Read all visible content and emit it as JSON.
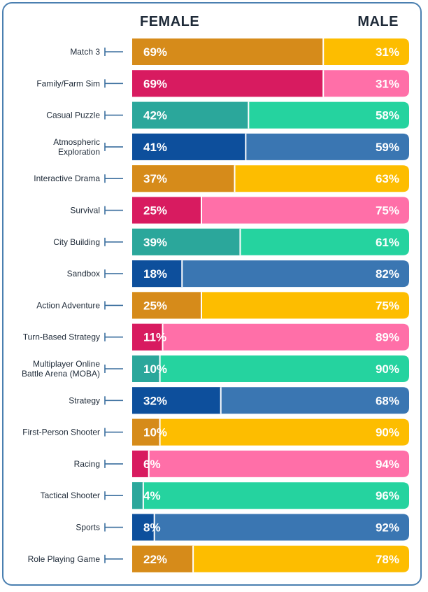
{
  "chart_data": {
    "type": "bar",
    "stacked": true,
    "orientation": "horizontal",
    "headers": {
      "female": "FEMALE",
      "male": "MALE"
    },
    "categories": [
      {
        "label": [
          "Match 3"
        ],
        "female": 69,
        "male": 31,
        "female_text": "69%",
        "male_text": "31%",
        "palette": "orange"
      },
      {
        "label": [
          "Family/Farm Sim"
        ],
        "female": 69,
        "male": 31,
        "female_text": "69%",
        "male_text": "31%",
        "palette": "pink"
      },
      {
        "label": [
          "Casual Puzzle"
        ],
        "female": 42,
        "male": 58,
        "female_text": "42%",
        "male_text": "58%",
        "palette": "teal"
      },
      {
        "label": [
          "Atmospheric",
          "Exploration"
        ],
        "female": 41,
        "male": 59,
        "female_text": "41%",
        "male_text": "59%",
        "palette": "blue"
      },
      {
        "label": [
          "Interactive Drama"
        ],
        "female": 37,
        "male": 63,
        "female_text": "37%",
        "male_text": "63%",
        "palette": "orange"
      },
      {
        "label": [
          "Survival"
        ],
        "female": 25,
        "male": 75,
        "female_text": "25%",
        "male_text": "75%",
        "palette": "pink"
      },
      {
        "label": [
          "City Building"
        ],
        "female": 39,
        "male": 61,
        "female_text": "39%",
        "male_text": "61%",
        "palette": "teal"
      },
      {
        "label": [
          "Sandbox"
        ],
        "female": 18,
        "male": 82,
        "female_text": "18%",
        "male_text": "82%",
        "palette": "blue"
      },
      {
        "label": [
          "Action Adventure"
        ],
        "female": 25,
        "male": 75,
        "female_text": "25%",
        "male_text": "75%",
        "palette": "orange"
      },
      {
        "label": [
          "Turn-Based Strategy"
        ],
        "female": 11,
        "male": 89,
        "female_text": "11%",
        "male_text": "89%",
        "palette": "pink"
      },
      {
        "label": [
          "Multiplayer Online",
          "Battle Arena (MOBA)"
        ],
        "female": 10,
        "male": 90,
        "female_text": "10%",
        "male_text": "90%",
        "palette": "teal"
      },
      {
        "label": [
          "Strategy"
        ],
        "female": 32,
        "male": 68,
        "female_text": "32%",
        "male_text": "68%",
        "palette": "blue"
      },
      {
        "label": [
          "First-Person Shooter"
        ],
        "female": 10,
        "male": 90,
        "female_text": "10%",
        "male_text": "90%",
        "palette": "orange"
      },
      {
        "label": [
          "Racing"
        ],
        "female": 6,
        "male": 94,
        "female_text": "6%",
        "male_text": "94%",
        "palette": "pink"
      },
      {
        "label": [
          "Tactical Shooter"
        ],
        "female": 4,
        "male": 96,
        "female_text": "4%",
        "male_text": "96%",
        "palette": "teal"
      },
      {
        "label": [
          "Sports"
        ],
        "female": 8,
        "male": 92,
        "female_text": "8%",
        "male_text": "92%",
        "palette": "blue"
      },
      {
        "label": [
          "Role Playing Game"
        ],
        "female": 22,
        "male": 78,
        "female_text": "22%",
        "male_text": "78%",
        "palette": "orange"
      }
    ],
    "colors": {
      "orange": {
        "female": "#d68b1a",
        "male": "#fdbd00"
      },
      "pink": {
        "female": "#d81b60",
        "male": "#ff6fa8"
      },
      "teal": {
        "female": "#2ba79b",
        "male": "#25d39f"
      },
      "blue": {
        "female": "#0d4f9c",
        "male": "#3a76b2"
      }
    },
    "xlim": [
      0,
      100
    ],
    "grid": false,
    "legend": "top"
  },
  "colors": {
    "frame": "#4a7fb0",
    "tick": "#3a6e9e",
    "text": "#1e2a38"
  }
}
